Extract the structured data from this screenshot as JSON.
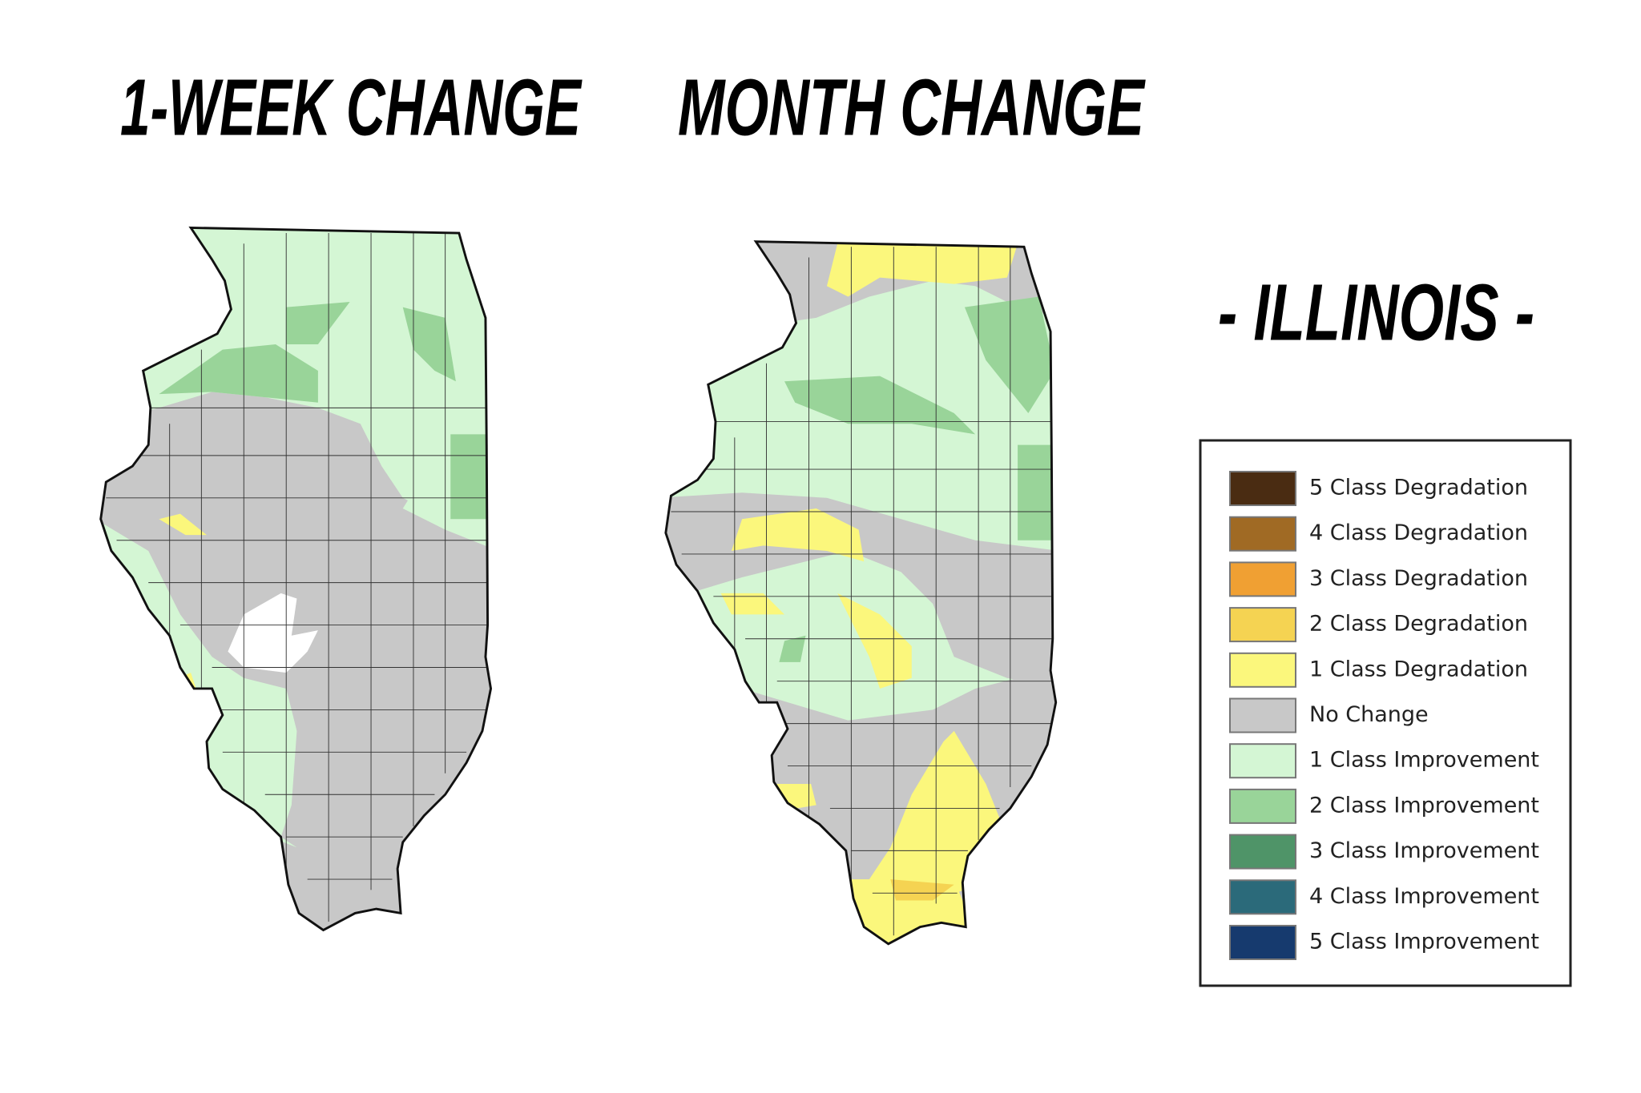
{
  "titles": {
    "week": "1-WEEK CHANGE",
    "month": "MONTH CHANGE",
    "state": "- ILLINOIS -"
  },
  "legend": {
    "items": [
      {
        "label": "5 Class Degradation",
        "color": "#4a2c12"
      },
      {
        "label": "4 Class Degradation",
        "color": "#a06a24"
      },
      {
        "label": "3 Class Degradation",
        "color": "#f0a033"
      },
      {
        "label": "2 Class Degradation",
        "color": "#f5d352"
      },
      {
        "label": "1 Class Degradation",
        "color": "#fbf77c"
      },
      {
        "label": "No Change",
        "color": "#c8c8c8"
      },
      {
        "label": "1 Class Improvement",
        "color": "#d4f6d4"
      },
      {
        "label": "2 Class Improvement",
        "color": "#99d499"
      },
      {
        "label": "3 Class Improvement",
        "color": "#4f9468"
      },
      {
        "label": "4 Class Improvement",
        "color": "#2b6a7a"
      },
      {
        "label": "5 Class Improvement",
        "color": "#163a6e"
      }
    ]
  }
}
